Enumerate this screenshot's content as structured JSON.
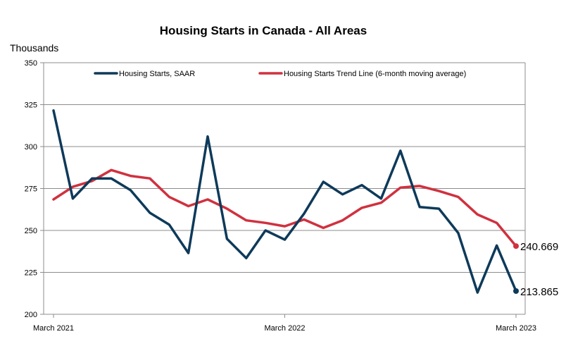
{
  "colors": {
    "series_starts": "#0E3A5A",
    "series_trend": "#D0313F",
    "grid": "#8c8c8c",
    "axis": "#000000"
  },
  "chart_data": {
    "type": "line",
    "title": "Housing Starts in Canada - All Areas",
    "ylabel": "Thousands",
    "xlabel": "",
    "ylim": [
      200,
      350
    ],
    "yticks": [
      200,
      225,
      250,
      275,
      300,
      325,
      350
    ],
    "grid": true,
    "legend_placement": "top",
    "x": [
      "2021-03",
      "2021-04",
      "2021-05",
      "2021-06",
      "2021-07",
      "2021-08",
      "2021-09",
      "2021-10",
      "2021-11",
      "2021-12",
      "2022-01",
      "2022-02",
      "2022-03",
      "2022-04",
      "2022-05",
      "2022-06",
      "2022-07",
      "2022-08",
      "2022-09",
      "2022-10",
      "2022-11",
      "2022-12",
      "2023-01",
      "2023-02",
      "2023-03"
    ],
    "x_tick_labels": [
      {
        "x": "2021-03",
        "label": "March 2021"
      },
      {
        "x": "2022-03",
        "label": "March 2022"
      },
      {
        "x": "2023-03",
        "label": "March 2023"
      }
    ],
    "series": [
      {
        "name": "Housing Starts, SAAR",
        "color_key": "series_starts",
        "values": [
          321.5,
          269,
          281,
          281,
          274,
          260.5,
          253.5,
          236.5,
          306,
          245,
          233.5,
          250,
          244.5,
          260,
          279,
          271.5,
          277,
          269,
          297.5,
          264,
          263,
          248.5,
          213,
          241,
          213.865
        ]
      },
      {
        "name": "Housing Starts Trend Line (6-month moving average)",
        "color_key": "series_trend",
        "values": [
          268.5,
          276,
          279.5,
          286,
          282.5,
          281,
          270,
          264.5,
          268.5,
          263,
          256,
          254.5,
          252.5,
          256.5,
          251.5,
          256,
          263.5,
          266.5,
          275.5,
          276.5,
          273.5,
          270,
          259.5,
          254.5,
          240.669
        ]
      }
    ],
    "end_labels": [
      {
        "series_index": 1,
        "text": "240.669"
      },
      {
        "series_index": 0,
        "text": "213.865"
      }
    ]
  }
}
